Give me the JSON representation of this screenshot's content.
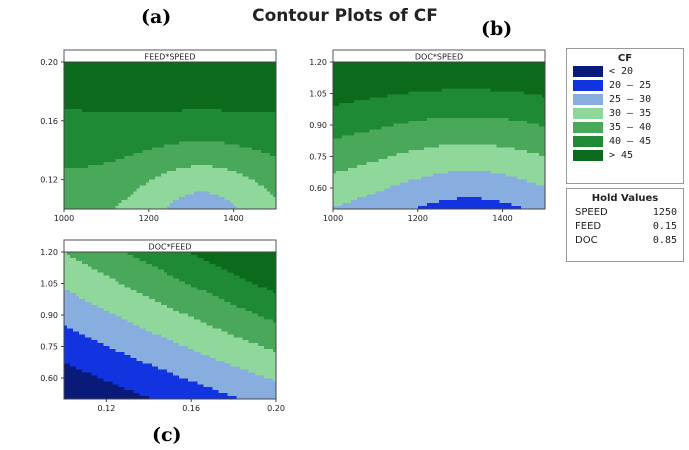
{
  "figure": {
    "title": "Contour Plots of CF",
    "panel_letters": [
      "(a)",
      "(b)",
      "(c)"
    ]
  },
  "legend": {
    "title": "CF",
    "items": [
      {
        "range": "< 20",
        "color": "#0a1a78"
      },
      {
        "range": "20 – 25",
        "color": "#1133e0"
      },
      {
        "range": "25 – 30",
        "color": "#88aee0"
      },
      {
        "range": "30 – 35",
        "color": "#8fd79a"
      },
      {
        "range": "35 – 40",
        "color": "#4aa85a"
      },
      {
        "range": "40 – 45",
        "color": "#1f8a35"
      },
      {
        "range": "> 45",
        "color": "#0b6a1c"
      }
    ]
  },
  "hold_values": {
    "title": "Hold Values",
    "rows": [
      {
        "name": "SPEED",
        "value": "1250"
      },
      {
        "name": "FEED",
        "value": "0.15"
      },
      {
        "name": "DOC",
        "value": "0.85"
      }
    ]
  },
  "chart_data": [
    {
      "type": "contour",
      "title": "FEED*SPEED",
      "xlim": [
        1000,
        1500
      ],
      "ylim": [
        0.1,
        0.2
      ],
      "xticks": [
        1000,
        1200,
        1400
      ],
      "yticks": [
        0.12,
        0.16,
        0.2
      ],
      "xtick_labels": [
        "1000",
        "1200",
        "1400"
      ],
      "ytick_labels": [
        "0.12",
        "0.16",
        "0.20"
      ],
      "regions": [
        {
          "class": "25 – 30",
          "value": 27.5
        },
        {
          "class": "30 – 35",
          "value": 32.5
        },
        {
          "class": "35 – 40",
          "value": 37.5
        },
        {
          "class": "40 – 45",
          "value": 42.5
        },
        {
          "class": "> 45",
          "value": 47.5
        }
      ]
    },
    {
      "type": "contour",
      "title": "DOC*SPEED",
      "xlim": [
        1000,
        1500
      ],
      "ylim": [
        0.5,
        1.2
      ],
      "xticks": [
        1000,
        1200,
        1400
      ],
      "yticks": [
        0.6,
        0.75,
        0.9,
        1.05,
        1.2
      ],
      "xtick_labels": [
        "1000",
        "1200",
        "1400"
      ],
      "ytick_labels": [
        "0.60",
        "0.75",
        "0.90",
        "1.05",
        "1.20"
      ],
      "regions": [
        {
          "class": "20 – 25",
          "value": 22.5
        },
        {
          "class": "25 – 30",
          "value": 27.5
        },
        {
          "class": "30 – 35",
          "value": 32.5
        },
        {
          "class": "35 – 40",
          "value": 37.5
        },
        {
          "class": "40 – 45",
          "value": 42.5
        },
        {
          "class": "> 45",
          "value": 47.5
        }
      ]
    },
    {
      "type": "contour",
      "title": "DOC*FEED",
      "xlim": [
        0.1,
        0.2
      ],
      "ylim": [
        0.5,
        1.2
      ],
      "xticks": [
        0.12,
        0.16,
        0.2
      ],
      "yticks": [
        0.6,
        0.75,
        0.9,
        1.05,
        1.2
      ],
      "xtick_labels": [
        "0.12",
        "0.16",
        "0.20"
      ],
      "ytick_labels": [
        "0.60",
        "0.75",
        "0.90",
        "1.05",
        "1.20"
      ],
      "regions": [
        {
          "class": "< 20",
          "value": 17.5
        },
        {
          "class": "20 – 25",
          "value": 22.5
        },
        {
          "class": "25 – 30",
          "value": 27.5
        },
        {
          "class": "30 – 35",
          "value": 32.5
        },
        {
          "class": "35 – 40",
          "value": 37.5
        },
        {
          "class": "40 – 45",
          "value": 42.5
        },
        {
          "class": "> 45",
          "value": 47.5
        }
      ]
    }
  ]
}
